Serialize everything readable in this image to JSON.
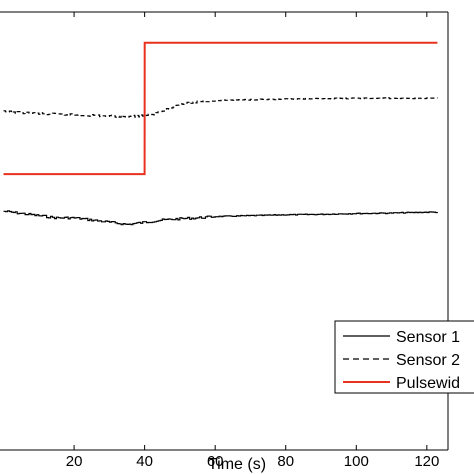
{
  "chart_data": {
    "type": "line",
    "xlabel": "Time (s)",
    "ylabel": "",
    "xlim": [
      -1,
      126
    ],
    "ylim": [
      0,
      10
    ],
    "x_ticks": [
      20,
      40,
      60,
      80,
      100,
      120
    ],
    "grid": false,
    "legend_position": "bottom-right",
    "series": [
      {
        "name": "Sensor 1",
        "color": "#000000",
        "style": "solid",
        "x": [
          0,
          5,
          10,
          15,
          20,
          25,
          30,
          35,
          40,
          45,
          50,
          55,
          60,
          70,
          80,
          90,
          100,
          110,
          120,
          123
        ],
        "y": [
          5.45,
          5.4,
          5.35,
          5.3,
          5.3,
          5.25,
          5.2,
          5.15,
          5.2,
          5.25,
          5.28,
          5.3,
          5.33,
          5.35,
          5.37,
          5.38,
          5.4,
          5.41,
          5.43,
          5.43
        ]
      },
      {
        "name": "Sensor 2",
        "color": "#000000",
        "style": "dashed",
        "x": [
          0,
          5,
          10,
          15,
          20,
          25,
          30,
          35,
          40,
          42,
          45,
          48,
          52,
          56,
          60,
          70,
          80,
          90,
          100,
          110,
          120,
          123
        ],
        "y": [
          7.72,
          7.7,
          7.68,
          7.66,
          7.65,
          7.64,
          7.62,
          7.62,
          7.63,
          7.65,
          7.75,
          7.85,
          7.92,
          7.96,
          7.98,
          8.0,
          8.01,
          8.02,
          8.03,
          8.03,
          8.03,
          8.03
        ]
      },
      {
        "name": "Pulsewid",
        "color": "#e8321e",
        "style": "solid",
        "x": [
          0,
          40,
          40.01,
          123
        ],
        "y": [
          6.3,
          6.3,
          9.3,
          9.3
        ]
      }
    ]
  }
}
